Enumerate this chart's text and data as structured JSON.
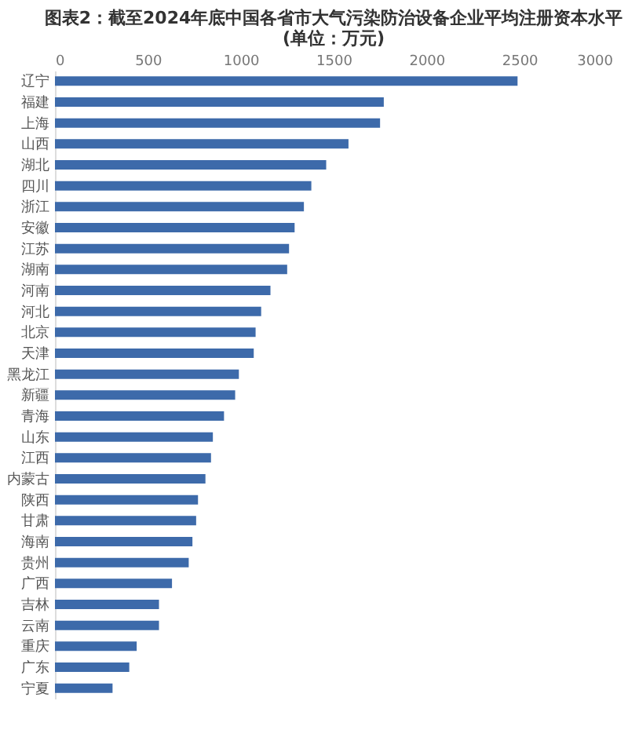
{
  "chart_data": {
    "type": "bar",
    "orientation": "horizontal",
    "title": "图表2：截至2024年底中国各省市大气污染防治设备企业平均注册资本水平 (单位：万元)",
    "categories": [
      "辽宁",
      "福建",
      "上海",
      "山西",
      "湖北",
      "四川",
      "浙江",
      "安徽",
      "江苏",
      "湖南",
      "河南",
      "河北",
      "北京",
      "天津",
      "黑龙江",
      "新疆",
      "青海",
      "山东",
      "江西",
      "内蒙古",
      "陕西",
      "甘肃",
      "海南",
      "贵州",
      "广西",
      "吉林",
      "云南",
      "重庆",
      "广东",
      "宁夏"
    ],
    "values": [
      2490,
      1770,
      1750,
      1580,
      1460,
      1380,
      1340,
      1290,
      1260,
      1250,
      1160,
      1110,
      1080,
      1070,
      990,
      970,
      910,
      850,
      840,
      810,
      770,
      760,
      740,
      720,
      630,
      560,
      560,
      440,
      400,
      310
    ],
    "color": "#3d6aaa",
    "xlim": [
      0,
      3000
    ],
    "xticks": [
      0,
      500,
      1000,
      1500,
      2000,
      2500,
      3000
    ],
    "grid": false
  }
}
